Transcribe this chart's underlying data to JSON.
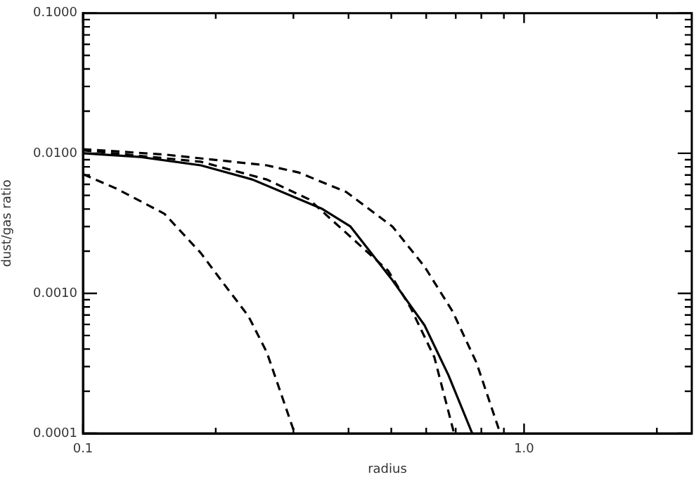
{
  "chart_data": {
    "type": "line",
    "xlabel": "radius",
    "ylabel": "dust/gas ratio",
    "log": "xy",
    "xlim": [
      0.1,
      2.4
    ],
    "ylim": [
      0.0001,
      0.1
    ],
    "xticks": [
      {
        "value": 0.1,
        "label": "0.1"
      },
      {
        "value": 0.2,
        "label": null
      },
      {
        "value": 0.3,
        "label": null
      },
      {
        "value": 0.4,
        "label": null
      },
      {
        "value": 0.5,
        "label": null
      },
      {
        "value": 0.6,
        "label": null
      },
      {
        "value": 0.7,
        "label": null
      },
      {
        "value": 0.8,
        "label": null
      },
      {
        "value": 0.9,
        "label": null
      },
      {
        "value": 1,
        "label": "1.0"
      },
      {
        "value": 2,
        "label": null
      }
    ],
    "yticks": [
      {
        "value": 0.0001,
        "label": "0.0001"
      },
      {
        "value": 0.0002,
        "label": null
      },
      {
        "value": 0.0003,
        "label": null
      },
      {
        "value": 0.0004,
        "label": null
      },
      {
        "value": 0.0005,
        "label": null
      },
      {
        "value": 0.0006,
        "label": null
      },
      {
        "value": 0.0007,
        "label": null
      },
      {
        "value": 0.0008,
        "label": null
      },
      {
        "value": 0.0009,
        "label": null
      },
      {
        "value": 0.001,
        "label": "0.0010"
      },
      {
        "value": 0.002,
        "label": null
      },
      {
        "value": 0.003,
        "label": null
      },
      {
        "value": 0.004,
        "label": null
      },
      {
        "value": 0.005,
        "label": null
      },
      {
        "value": 0.006,
        "label": null
      },
      {
        "value": 0.007,
        "label": null
      },
      {
        "value": 0.008,
        "label": null
      },
      {
        "value": 0.009,
        "label": null
      },
      {
        "value": 0.01,
        "label": "0.0100"
      },
      {
        "value": 0.02,
        "label": null
      },
      {
        "value": 0.03,
        "label": null
      },
      {
        "value": 0.04,
        "label": null
      },
      {
        "value": 0.05,
        "label": null
      },
      {
        "value": 0.06,
        "label": null
      },
      {
        "value": 0.07,
        "label": null
      },
      {
        "value": 0.08,
        "label": null
      },
      {
        "value": 0.09,
        "label": null
      },
      {
        "value": 0.1,
        "label": "0.1000"
      }
    ],
    "series": [
      {
        "color": "#000000",
        "line_style": "solid",
        "x": [
          0.1,
          0.135,
          0.185,
          0.242,
          0.349,
          0.404,
          0.503,
          0.595,
          0.674,
          0.763
        ],
        "values": [
          0.01,
          0.0094,
          0.0082,
          0.0065,
          0.004,
          0.003,
          0.00124,
          0.00059,
          0.00026,
          0.0001
        ]
      },
      {
        "color": "#000000",
        "line_style": "dashed",
        "x": [
          0.1,
          0.153,
          0.261,
          0.308,
          0.395,
          0.503,
          0.595,
          0.689,
          0.78,
          0.883
        ],
        "values": [
          0.0107,
          0.0098,
          0.0082,
          0.0073,
          0.0053,
          0.003,
          0.00155,
          0.00074,
          0.00032,
          0.0001
        ]
      },
      {
        "color": "#000000",
        "line_style": "dashed",
        "x": [
          0.1,
          0.185,
          0.261,
          0.325,
          0.492,
          0.553,
          0.626,
          0.694
        ],
        "values": [
          0.0105,
          0.0087,
          0.0065,
          0.0047,
          0.00145,
          0.00079,
          0.00035,
          0.0001
        ]
      },
      {
        "color": "#000000",
        "line_style": "dashed",
        "x": [
          0.1,
          0.119,
          0.153,
          0.185,
          0.209,
          0.237,
          0.261,
          0.266,
          0.302
        ],
        "values": [
          0.0071,
          0.0056,
          0.0037,
          0.00194,
          0.00116,
          0.00069,
          0.00038,
          0.00032,
          0.0001
        ]
      }
    ]
  }
}
